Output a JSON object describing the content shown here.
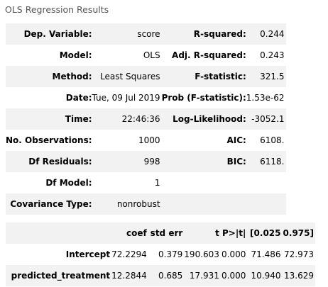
{
  "caption": "OLS Regression Results",
  "summary": {
    "rows": [
      {
        "left_label": "Dep. Variable:",
        "left_value": "score",
        "right_label": "R-squared:",
        "right_value": "0.244"
      },
      {
        "left_label": "Model:",
        "left_value": "OLS",
        "right_label": "Adj. R-squared:",
        "right_value": "0.243"
      },
      {
        "left_label": "Method:",
        "left_value": "Least Squares",
        "right_label": "F-statistic:",
        "right_value": "321.5"
      },
      {
        "left_label": "Date:",
        "left_value": "Tue, 09 Jul 2019",
        "right_label": "Prob (F-statistic):",
        "right_value": "1.53e-62"
      },
      {
        "left_label": "Time:",
        "left_value": "22:46:36",
        "right_label": "Log-Likelihood:",
        "right_value": "-3052.1"
      },
      {
        "left_label": "No. Observations:",
        "left_value": "1000",
        "right_label": "AIC:",
        "right_value": "6108."
      },
      {
        "left_label": "Df Residuals:",
        "left_value": "998",
        "right_label": "BIC:",
        "right_value": "6118."
      },
      {
        "left_label": "Df Model:",
        "left_value": "1",
        "right_label": "",
        "right_value": ""
      },
      {
        "left_label": "Covariance Type:",
        "left_value": "nonrobust",
        "right_label": "",
        "right_value": ""
      }
    ]
  },
  "coefficients": {
    "headers": [
      "",
      "coef",
      "std err",
      "t",
      "P>|t|",
      "[0.025",
      "0.975]"
    ],
    "rows": [
      {
        "name": "Intercept",
        "coef": "72.2294",
        "std_err": "0.379",
        "t": "190.603",
        "p": "0.000",
        "ci_low": "71.486",
        "ci_high": "72.973"
      },
      {
        "name": "predicted_treatment",
        "coef": "12.2844",
        "std_err": "0.685",
        "t": "17.931",
        "p": "0.000",
        "ci_low": "10.940",
        "ci_high": "13.629"
      }
    ]
  }
}
